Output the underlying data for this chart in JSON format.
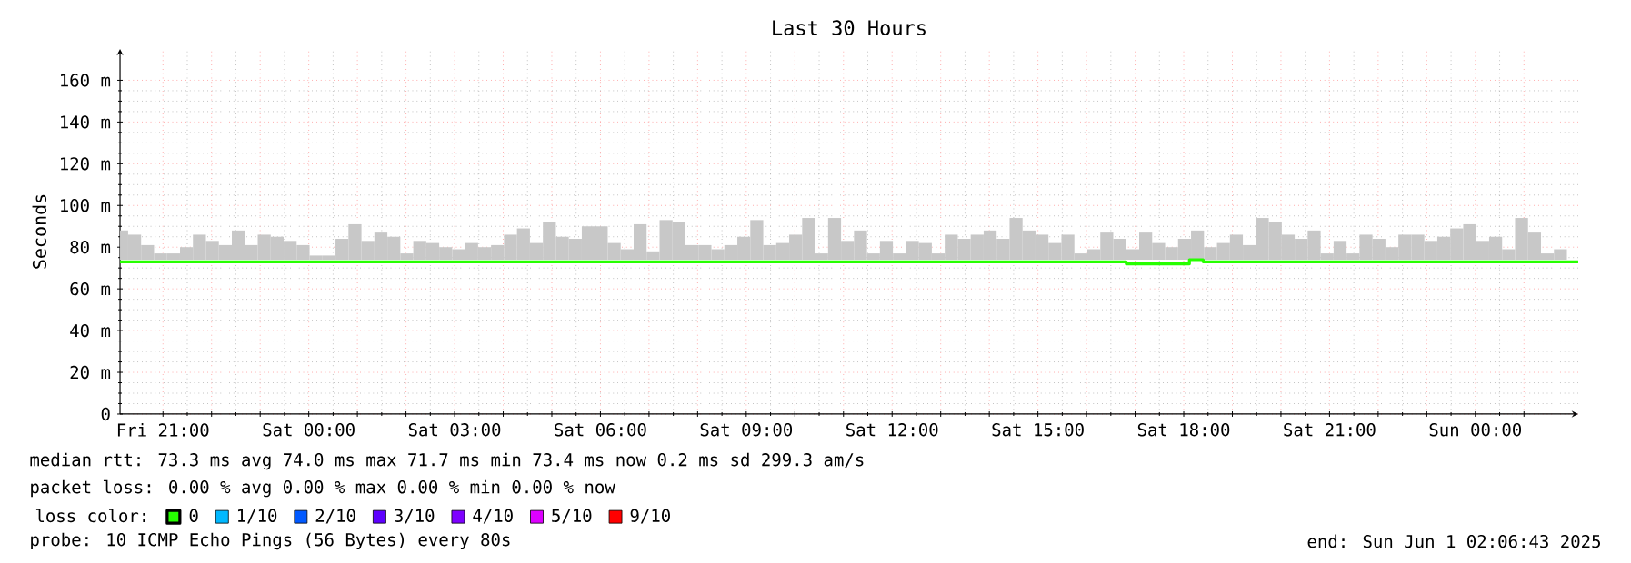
{
  "chart_data": {
    "type": "bar",
    "title": "Last 30 Hours",
    "ylabel": "Seconds",
    "legend_title": "loss color:",
    "legend": "bottom",
    "grid": true,
    "xlim": [
      "2025-05-30T20:07",
      "2025-06-01T02:07"
    ],
    "xticks": [
      {
        "value": "2025-05-30T21:00",
        "label": "Fri 21:00"
      },
      {
        "value": "2025-05-30T22:00",
        "label": null
      },
      {
        "value": "2025-05-30T23:00",
        "label": null
      },
      {
        "value": "2025-05-31T00:00",
        "label": "Sat 00:00"
      },
      {
        "value": "2025-05-31T01:00",
        "label": null
      },
      {
        "value": "2025-05-31T02:00",
        "label": null
      },
      {
        "value": "2025-05-31T03:00",
        "label": "Sat 03:00"
      },
      {
        "value": "2025-05-31T04:00",
        "label": null
      },
      {
        "value": "2025-05-31T05:00",
        "label": null
      },
      {
        "value": "2025-05-31T06:00",
        "label": "Sat 06:00"
      },
      {
        "value": "2025-05-31T07:00",
        "label": null
      },
      {
        "value": "2025-05-31T08:00",
        "label": null
      },
      {
        "value": "2025-05-31T09:00",
        "label": "Sat 09:00"
      },
      {
        "value": "2025-05-31T10:00",
        "label": null
      },
      {
        "value": "2025-05-31T11:00",
        "label": null
      },
      {
        "value": "2025-05-31T12:00",
        "label": "Sat 12:00"
      },
      {
        "value": "2025-05-31T13:00",
        "label": null
      },
      {
        "value": "2025-05-31T14:00",
        "label": null
      },
      {
        "value": "2025-05-31T15:00",
        "label": "Sat 15:00"
      },
      {
        "value": "2025-05-31T16:00",
        "label": null
      },
      {
        "value": "2025-05-31T17:00",
        "label": null
      },
      {
        "value": "2025-05-31T18:00",
        "label": "Sat 18:00"
      },
      {
        "value": "2025-05-31T19:00",
        "label": null
      },
      {
        "value": "2025-05-31T20:00",
        "label": null
      },
      {
        "value": "2025-05-31T21:00",
        "label": "Sat 21:00"
      },
      {
        "value": "2025-05-31T22:00",
        "label": null
      },
      {
        "value": "2025-05-31T23:00",
        "label": null
      },
      {
        "value": "2025-06-01T00:00",
        "label": "Sun 00:00"
      },
      {
        "value": "2025-06-01T01:00",
        "label": null
      }
    ],
    "ylim": [
      0,
      175
    ],
    "yticks": [
      0,
      {
        "value": 20,
        "label": "20 m"
      },
      {
        "value": 40,
        "label": "40 m"
      },
      {
        "value": 60,
        "label": "60 m"
      },
      {
        "value": 80,
        "label": "80 m"
      },
      {
        "value": 100,
        "label": "100 m"
      },
      {
        "value": 120,
        "label": "120 m"
      },
      {
        "value": 140,
        "label": "140 m"
      },
      {
        "value": 160,
        "label": "160 m"
      }
    ],
    "series": [
      {
        "color": "#c8c8c8",
        "x": [
          "2025-05-30T20:09",
          "2025-05-30T20:25",
          "2025-05-30T20:41",
          "2025-05-30T20:57",
          "2025-05-30T21:13",
          "2025-05-30T21:29",
          "2025-05-30T21:45",
          "2025-05-30T22:01",
          "2025-05-30T22:17",
          "2025-05-30T22:33",
          "2025-05-30T22:49",
          "2025-05-30T23:05",
          "2025-05-30T23:21",
          "2025-05-30T23:37",
          "2025-05-30T23:53",
          "2025-05-31T00:09",
          "2025-05-31T00:25",
          "2025-05-31T00:41",
          "2025-05-31T00:57",
          "2025-05-31T01:13",
          "2025-05-31T01:29",
          "2025-05-31T01:45",
          "2025-05-31T02:01",
          "2025-05-31T02:17",
          "2025-05-31T02:33",
          "2025-05-31T02:49",
          "2025-05-31T03:05",
          "2025-05-31T03:21",
          "2025-05-31T03:37",
          "2025-05-31T03:53",
          "2025-05-31T04:09",
          "2025-05-31T04:25",
          "2025-05-31T04:41",
          "2025-05-31T04:57",
          "2025-05-31T05:13",
          "2025-05-31T05:29",
          "2025-05-31T05:45",
          "2025-05-31T06:01",
          "2025-05-31T06:17",
          "2025-05-31T06:33",
          "2025-05-31T06:49",
          "2025-05-31T07:05",
          "2025-05-31T07:21",
          "2025-05-31T07:37",
          "2025-05-31T07:53",
          "2025-05-31T08:09",
          "2025-05-31T08:25",
          "2025-05-31T08:41",
          "2025-05-31T08:57",
          "2025-05-31T09:13",
          "2025-05-31T09:29",
          "2025-05-31T09:45",
          "2025-05-31T10:01",
          "2025-05-31T10:17",
          "2025-05-31T10:33",
          "2025-05-31T10:49",
          "2025-05-31T11:05",
          "2025-05-31T11:21",
          "2025-05-31T11:37",
          "2025-05-31T11:53",
          "2025-05-31T12:09",
          "2025-05-31T12:25",
          "2025-05-31T12:41",
          "2025-05-31T12:57",
          "2025-05-31T13:13",
          "2025-05-31T13:29",
          "2025-05-31T13:45",
          "2025-05-31T14:01",
          "2025-05-31T14:17",
          "2025-05-31T14:33",
          "2025-05-31T14:49",
          "2025-05-31T15:05",
          "2025-05-31T15:21",
          "2025-05-31T15:37",
          "2025-05-31T15:53",
          "2025-05-31T16:09",
          "2025-05-31T16:25",
          "2025-05-31T16:41",
          "2025-05-31T16:57",
          "2025-05-31T17:13",
          "2025-05-31T17:29",
          "2025-05-31T17:45",
          "2025-05-31T18:01",
          "2025-05-31T18:17",
          "2025-05-31T18:33",
          "2025-05-31T18:49",
          "2025-05-31T19:05",
          "2025-05-31T19:21",
          "2025-05-31T19:37",
          "2025-05-31T19:53",
          "2025-05-31T20:09",
          "2025-05-31T20:25",
          "2025-05-31T20:41",
          "2025-05-31T20:57",
          "2025-05-31T21:13",
          "2025-05-31T21:29",
          "2025-05-31T21:45",
          "2025-05-31T22:01",
          "2025-05-31T22:17",
          "2025-05-31T22:33",
          "2025-05-31T22:49",
          "2025-05-31T23:05",
          "2025-05-31T23:21",
          "2025-05-31T23:37",
          "2025-05-31T23:53",
          "2025-06-01T00:09",
          "2025-06-01T00:25",
          "2025-06-01T00:41",
          "2025-06-01T00:57",
          "2025-06-01T01:13",
          "2025-06-01T01:29",
          "2025-06-01T01:45"
        ],
        "base": [
          74,
          74,
          74,
          74,
          74,
          74,
          74,
          74,
          74,
          74,
          74,
          74,
          74,
          74,
          74,
          74,
          74,
          74,
          74,
          74,
          74,
          74,
          74,
          74,
          74,
          74,
          74,
          74,
          74,
          74,
          74,
          74,
          74,
          74,
          74,
          74,
          74,
          74,
          74,
          74,
          74,
          74,
          74,
          74,
          74,
          74,
          74,
          74,
          74,
          74,
          74,
          74,
          74,
          74,
          74,
          74,
          74,
          74,
          74,
          74,
          74,
          74,
          74,
          74,
          74,
          74,
          74,
          74,
          74,
          74,
          74,
          74,
          74,
          74,
          74,
          74,
          74,
          74,
          74,
          74,
          74,
          74,
          74,
          74,
          74,
          74,
          74,
          74,
          74,
          74,
          74,
          74,
          74,
          74,
          74,
          74,
          74,
          74,
          74,
          74,
          74,
          74,
          74,
          74,
          74,
          74,
          74,
          74,
          74,
          74,
          74,
          74
        ],
        "values": [
          14,
          12,
          7,
          3,
          3,
          6,
          12,
          9,
          7,
          14,
          7,
          12,
          11,
          9,
          7,
          2,
          2,
          10,
          17,
          9,
          13,
          11,
          3,
          9,
          8,
          6,
          5,
          8,
          6,
          7,
          12,
          15,
          8,
          18,
          11,
          10,
          16,
          16,
          8,
          5,
          17,
          4,
          19,
          18,
          7,
          7,
          5,
          7,
          11,
          19,
          7,
          8,
          12,
          20,
          3,
          20,
          9,
          14,
          3,
          9,
          3,
          9,
          8,
          3,
          12,
          10,
          12,
          14,
          10,
          20,
          14,
          12,
          8,
          12,
          3,
          5,
          13,
          10,
          5,
          13,
          8,
          6,
          10,
          14,
          6,
          8,
          12,
          7,
          20,
          18,
          12,
          10,
          14,
          3,
          9,
          3,
          12,
          10,
          6,
          12,
          12,
          9,
          11,
          15,
          17,
          9,
          11,
          5,
          20,
          13,
          3,
          5
        ]
      },
      {
        "type": "step",
        "name": "0",
        "color": "#26ff00",
        "x": [
          "2025-05-30T20:07",
          "2025-05-31T16:49",
          "2025-05-31T18:07",
          "2025-05-31T18:24",
          "2025-06-01T02:07"
        ],
        "values": [
          73,
          72,
          74,
          73,
          73
        ]
      },
      {
        "type": "line",
        "name": "1/10",
        "color": "#00b8ff"
      },
      {
        "type": "line",
        "name": "2/10",
        "color": "#0059ff"
      },
      {
        "type": "line",
        "name": "3/10",
        "color": "#5e00ff"
      },
      {
        "type": "line",
        "name": "4/10",
        "color": "#7e00ff"
      },
      {
        "type": "line",
        "name": "5/10",
        "color": "#dd00ff"
      },
      {
        "type": "line",
        "name": "9/10",
        "color": "#ff0000"
      }
    ],
    "annotations": [
      "median rtt: 73.3 ms avg 74.0 ms max 71.7 ms min 73.4 ms now 0.2 ms sd 299.3 am/s",
      "packet loss: 0.00 % avg 0.00 % max 0.00 % min 0.00 % now",
      "probe: 10 ICMP Echo Pings (56 Bytes) every 80s",
      "end: Sun Jun 1 02:06:43 2025"
    ]
  }
}
